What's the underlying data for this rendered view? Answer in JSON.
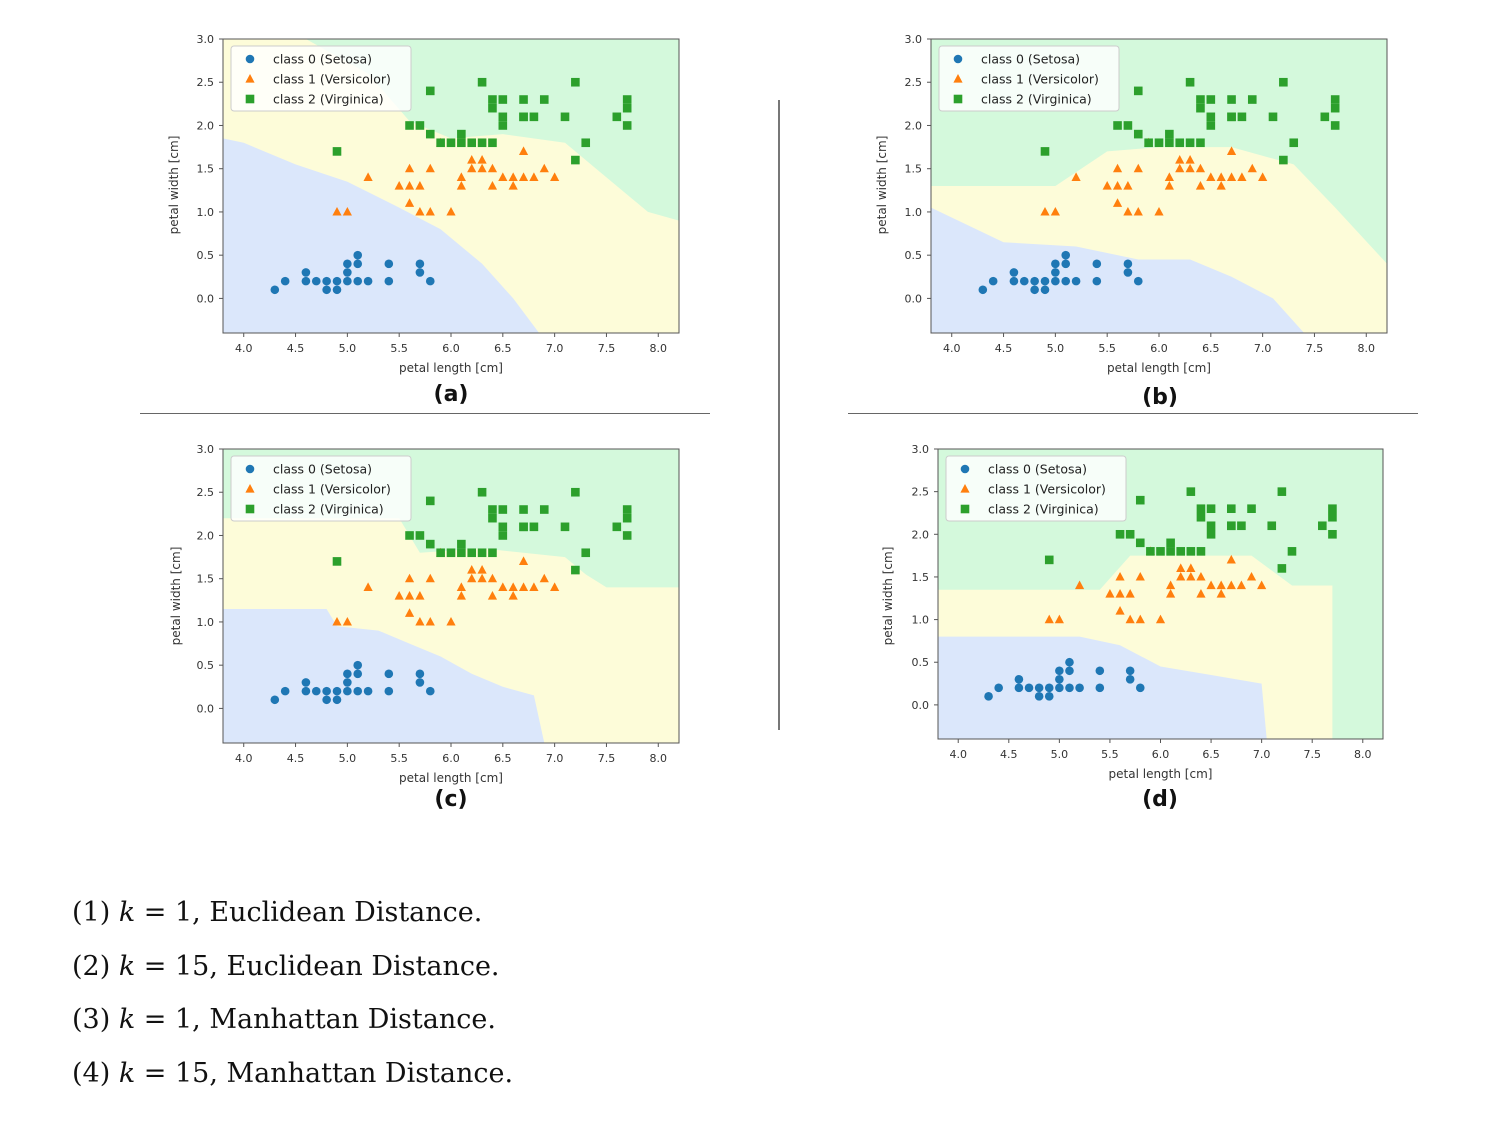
{
  "chart_data": [
    {
      "type": "scatter",
      "panel_label": "(a)",
      "xlabel": "petal length [cm]",
      "ylabel": "petal width [cm]",
      "xlim": [
        3.8,
        8.2
      ],
      "ylim": [
        -0.4,
        3.0
      ],
      "xticks": [
        "4.0",
        "4.5",
        "5.0",
        "5.5",
        "6.0",
        "6.5",
        "7.0",
        "7.5",
        "8.0"
      ],
      "yticks": [
        "0.0",
        "0.5",
        "1.0",
        "1.5",
        "2.0",
        "2.5",
        "3.0"
      ],
      "legend_position": "top-left",
      "decision_regions": "class-0 region lower-left, class-1 diagonal band, class-2 upper-right",
      "series": [
        {
          "name": "class 0 (Setosa)",
          "marker": "circle",
          "color": "#1f77b4",
          "x": [
            4.3,
            4.4,
            4.6,
            4.6,
            4.7,
            4.8,
            4.8,
            4.9,
            4.9,
            5.0,
            5.0,
            5.0,
            5.1,
            5.1,
            5.1,
            5.2,
            5.4,
            5.4,
            5.7,
            5.7,
            5.8
          ],
          "y": [
            0.1,
            0.2,
            0.2,
            0.3,
            0.2,
            0.2,
            0.1,
            0.1,
            0.2,
            0.2,
            0.3,
            0.4,
            0.2,
            0.4,
            0.5,
            0.2,
            0.2,
            0.4,
            0.3,
            0.4,
            0.2
          ]
        },
        {
          "name": "class 1 (Versicolor)",
          "marker": "triangle",
          "color": "#ff7f0e",
          "x": [
            4.9,
            5.0,
            5.2,
            5.5,
            5.6,
            5.7,
            5.6,
            5.6,
            5.7,
            5.8,
            5.8,
            5.9,
            6.0,
            6.1,
            6.1,
            6.2,
            6.2,
            6.3,
            6.3,
            6.4,
            6.4,
            6.5,
            6.6,
            6.6,
            6.7,
            6.7,
            6.8,
            6.9,
            7.0
          ],
          "y": [
            1.0,
            1.0,
            1.4,
            1.3,
            1.3,
            1.3,
            1.5,
            1.1,
            1.0,
            1.0,
            1.5,
            1.8,
            1.0,
            1.3,
            1.4,
            1.5,
            1.6,
            1.5,
            1.6,
            1.3,
            1.5,
            1.4,
            1.4,
            1.3,
            1.4,
            1.7,
            1.4,
            1.5,
            1.4
          ]
        },
        {
          "name": "class 2 (Virginica)",
          "marker": "square",
          "color": "#2ca02c",
          "x": [
            4.9,
            5.6,
            5.7,
            5.8,
            5.8,
            5.9,
            6.0,
            6.1,
            6.1,
            6.2,
            6.3,
            6.3,
            6.4,
            6.4,
            6.4,
            6.5,
            6.5,
            6.5,
            6.7,
            6.7,
            6.7,
            6.8,
            6.9,
            7.1,
            7.2,
            7.2,
            7.3,
            7.6,
            7.7,
            7.7,
            7.7
          ],
          "y": [
            1.7,
            2.0,
            2.0,
            1.9,
            2.4,
            1.8,
            1.8,
            1.8,
            1.9,
            1.8,
            1.8,
            2.5,
            1.8,
            2.2,
            2.3,
            2.0,
            2.1,
            2.3,
            2.1,
            2.1,
            2.3,
            2.1,
            2.3,
            2.1,
            1.6,
            2.5,
            1.8,
            2.1,
            2.0,
            2.2,
            2.3
          ]
        }
      ]
    },
    {
      "type": "scatter",
      "panel_label": "(b)",
      "xlabel": "petal length [cm]",
      "ylabel": "petal width [cm]",
      "xlim": [
        3.8,
        8.2
      ],
      "ylim": [
        -0.4,
        3.0
      ],
      "xticks": [
        "4.0",
        "4.5",
        "5.0",
        "5.5",
        "6.0",
        "6.5",
        "7.0",
        "7.5",
        "8.0"
      ],
      "yticks": [
        "0.0",
        "0.5",
        "1.0",
        "1.5",
        "2.0",
        "2.5",
        "3.0"
      ],
      "legend_position": "top-left",
      "decision_regions": "smoother boundaries; class-1 band widens to the right",
      "series": [
        {
          "name": "class 0 (Setosa)",
          "marker": "circle",
          "color": "#1f77b4",
          "x": [
            4.3,
            4.4,
            4.6,
            4.6,
            4.7,
            4.8,
            4.8,
            4.9,
            4.9,
            5.0,
            5.0,
            5.0,
            5.1,
            5.1,
            5.1,
            5.2,
            5.4,
            5.4,
            5.7,
            5.7,
            5.8
          ],
          "y": [
            0.1,
            0.2,
            0.2,
            0.3,
            0.2,
            0.2,
            0.1,
            0.1,
            0.2,
            0.2,
            0.3,
            0.4,
            0.2,
            0.4,
            0.5,
            0.2,
            0.2,
            0.4,
            0.3,
            0.4,
            0.2
          ]
        },
        {
          "name": "class 1 (Versicolor)",
          "marker": "triangle",
          "color": "#ff7f0e",
          "x": [
            4.9,
            5.0,
            5.2,
            5.5,
            5.6,
            5.7,
            5.6,
            5.6,
            5.7,
            5.8,
            5.8,
            5.9,
            6.0,
            6.1,
            6.1,
            6.2,
            6.2,
            6.3,
            6.3,
            6.4,
            6.4,
            6.5,
            6.6,
            6.6,
            6.7,
            6.7,
            6.8,
            6.9,
            7.0
          ],
          "y": [
            1.0,
            1.0,
            1.4,
            1.3,
            1.3,
            1.3,
            1.5,
            1.1,
            1.0,
            1.0,
            1.5,
            1.8,
            1.0,
            1.3,
            1.4,
            1.5,
            1.6,
            1.5,
            1.6,
            1.3,
            1.5,
            1.4,
            1.4,
            1.3,
            1.4,
            1.7,
            1.4,
            1.5,
            1.4
          ]
        },
        {
          "name": "class 2 (Virginica)",
          "marker": "square",
          "color": "#2ca02c",
          "x": [
            4.9,
            5.6,
            5.7,
            5.8,
            5.8,
            5.9,
            6.0,
            6.1,
            6.1,
            6.2,
            6.3,
            6.3,
            6.4,
            6.4,
            6.4,
            6.5,
            6.5,
            6.5,
            6.7,
            6.7,
            6.7,
            6.8,
            6.9,
            7.1,
            7.2,
            7.2,
            7.3,
            7.6,
            7.7,
            7.7,
            7.7
          ],
          "y": [
            1.7,
            2.0,
            2.0,
            1.9,
            2.4,
            1.8,
            1.8,
            1.8,
            1.9,
            1.8,
            1.8,
            2.5,
            1.8,
            2.2,
            2.3,
            2.0,
            2.1,
            2.3,
            2.1,
            2.1,
            2.3,
            2.1,
            2.3,
            2.1,
            1.6,
            2.5,
            1.8,
            2.1,
            2.0,
            2.2,
            2.3
          ]
        }
      ]
    },
    {
      "type": "scatter",
      "panel_label": "(c)",
      "xlabel": "petal length [cm]",
      "ylabel": "petal width [cm]",
      "xlim": [
        3.8,
        8.2
      ],
      "ylim": [
        -0.4,
        3.0
      ],
      "xticks": [
        "4.0",
        "4.5",
        "5.0",
        "5.5",
        "6.0",
        "6.5",
        "7.0",
        "7.5",
        "8.0"
      ],
      "yticks": [
        "0.0",
        "0.5",
        "1.0",
        "1.5",
        "2.0",
        "2.5",
        "3.0"
      ],
      "legend_position": "top-left",
      "decision_regions": "axis-aligned step boundaries",
      "series": [
        {
          "name": "class 0 (Setosa)",
          "marker": "circle",
          "color": "#1f77b4",
          "x": [
            4.3,
            4.4,
            4.6,
            4.6,
            4.7,
            4.8,
            4.8,
            4.9,
            4.9,
            5.0,
            5.0,
            5.0,
            5.1,
            5.1,
            5.1,
            5.2,
            5.4,
            5.4,
            5.7,
            5.7,
            5.8
          ],
          "y": [
            0.1,
            0.2,
            0.2,
            0.3,
            0.2,
            0.2,
            0.1,
            0.1,
            0.2,
            0.2,
            0.3,
            0.4,
            0.2,
            0.4,
            0.5,
            0.2,
            0.2,
            0.4,
            0.3,
            0.4,
            0.2
          ]
        },
        {
          "name": "class 1 (Versicolor)",
          "marker": "triangle",
          "color": "#ff7f0e",
          "x": [
            4.9,
            5.0,
            5.2,
            5.5,
            5.6,
            5.7,
            5.6,
            5.6,
            5.7,
            5.8,
            5.8,
            5.9,
            6.0,
            6.1,
            6.1,
            6.2,
            6.2,
            6.3,
            6.3,
            6.4,
            6.4,
            6.5,
            6.6,
            6.6,
            6.7,
            6.7,
            6.8,
            6.9,
            7.0
          ],
          "y": [
            1.0,
            1.0,
            1.4,
            1.3,
            1.3,
            1.3,
            1.5,
            1.1,
            1.0,
            1.0,
            1.5,
            1.8,
            1.0,
            1.3,
            1.4,
            1.5,
            1.6,
            1.5,
            1.6,
            1.3,
            1.5,
            1.4,
            1.4,
            1.3,
            1.4,
            1.7,
            1.4,
            1.5,
            1.4
          ]
        },
        {
          "name": "class 2 (Virginica)",
          "marker": "square",
          "color": "#2ca02c",
          "x": [
            4.9,
            5.6,
            5.7,
            5.8,
            5.8,
            5.9,
            6.0,
            6.1,
            6.1,
            6.2,
            6.3,
            6.3,
            6.4,
            6.4,
            6.4,
            6.5,
            6.5,
            6.5,
            6.7,
            6.7,
            6.7,
            6.8,
            6.9,
            7.1,
            7.2,
            7.2,
            7.3,
            7.6,
            7.7,
            7.7,
            7.7
          ],
          "y": [
            1.7,
            2.0,
            2.0,
            1.9,
            2.4,
            1.8,
            1.8,
            1.8,
            1.9,
            1.8,
            1.8,
            2.5,
            1.8,
            2.2,
            2.3,
            2.0,
            2.1,
            2.3,
            2.1,
            2.1,
            2.3,
            2.1,
            2.3,
            2.1,
            1.6,
            2.5,
            1.8,
            2.1,
            2.0,
            2.2,
            2.3
          ]
        }
      ]
    },
    {
      "type": "scatter",
      "panel_label": "(d)",
      "xlabel": "petal length [cm]",
      "ylabel": "petal width [cm]",
      "xlim": [
        3.8,
        8.2
      ],
      "ylim": [
        -0.4,
        3.0
      ],
      "xticks": [
        "4.0",
        "4.5",
        "5.0",
        "5.5",
        "6.0",
        "6.5",
        "7.0",
        "7.5",
        "8.0"
      ],
      "yticks": [
        "0.0",
        "0.5",
        "1.0",
        "1.5",
        "2.0",
        "2.5",
        "3.0"
      ],
      "legend_position": "top-left",
      "decision_regions": "axis-aligned step boundaries, smoother",
      "series": [
        {
          "name": "class 0 (Setosa)",
          "marker": "circle",
          "color": "#1f77b4",
          "x": [
            4.3,
            4.4,
            4.6,
            4.6,
            4.7,
            4.8,
            4.8,
            4.9,
            4.9,
            5.0,
            5.0,
            5.0,
            5.1,
            5.1,
            5.1,
            5.2,
            5.4,
            5.4,
            5.7,
            5.7,
            5.8
          ],
          "y": [
            0.1,
            0.2,
            0.2,
            0.3,
            0.2,
            0.2,
            0.1,
            0.1,
            0.2,
            0.2,
            0.3,
            0.4,
            0.2,
            0.4,
            0.5,
            0.2,
            0.2,
            0.4,
            0.3,
            0.4,
            0.2
          ]
        },
        {
          "name": "class 1 (Versicolor)",
          "marker": "triangle",
          "color": "#ff7f0e",
          "x": [
            4.9,
            5.0,
            5.2,
            5.5,
            5.6,
            5.7,
            5.6,
            5.6,
            5.7,
            5.8,
            5.8,
            5.9,
            6.0,
            6.1,
            6.1,
            6.2,
            6.2,
            6.3,
            6.3,
            6.4,
            6.4,
            6.5,
            6.6,
            6.6,
            6.7,
            6.7,
            6.8,
            6.9,
            7.0
          ],
          "y": [
            1.0,
            1.0,
            1.4,
            1.3,
            1.3,
            1.3,
            1.5,
            1.1,
            1.0,
            1.0,
            1.5,
            1.8,
            1.0,
            1.3,
            1.4,
            1.5,
            1.6,
            1.5,
            1.6,
            1.3,
            1.5,
            1.4,
            1.4,
            1.3,
            1.4,
            1.7,
            1.4,
            1.5,
            1.4
          ]
        },
        {
          "name": "class 2 (Virginica)",
          "marker": "square",
          "color": "#2ca02c",
          "x": [
            4.9,
            5.6,
            5.7,
            5.8,
            5.8,
            5.9,
            6.0,
            6.1,
            6.1,
            6.2,
            6.3,
            6.3,
            6.4,
            6.4,
            6.4,
            6.5,
            6.5,
            6.5,
            6.7,
            6.7,
            6.7,
            6.8,
            6.9,
            7.1,
            7.2,
            7.2,
            7.3,
            7.6,
            7.7,
            7.7,
            7.7
          ],
          "y": [
            1.7,
            2.0,
            2.0,
            1.9,
            2.4,
            1.8,
            1.8,
            1.8,
            1.9,
            1.8,
            1.8,
            2.5,
            1.8,
            2.2,
            2.3,
            2.0,
            2.1,
            2.3,
            2.1,
            2.1,
            2.3,
            2.1,
            2.3,
            2.1,
            1.6,
            2.5,
            1.8,
            2.1,
            2.0,
            2.2,
            2.3
          ]
        }
      ]
    }
  ],
  "region_colors": {
    "class0": "#dbe7fb",
    "class1": "#fdfcd9",
    "class2": "#d4f9dc"
  },
  "options": [
    {
      "num": "(1)",
      "k": "k",
      "eq": " = 1, ",
      "text": "Euclidean Distance."
    },
    {
      "num": "(2)",
      "k": "k",
      "eq": " = 15, ",
      "text": "Euclidean Distance."
    },
    {
      "num": "(3)",
      "k": "k",
      "eq": " = 1, ",
      "text": "Manhattan Distance."
    },
    {
      "num": "(4)",
      "k": "k",
      "eq": " = 15, ",
      "text": "Manhattan Distance."
    }
  ]
}
